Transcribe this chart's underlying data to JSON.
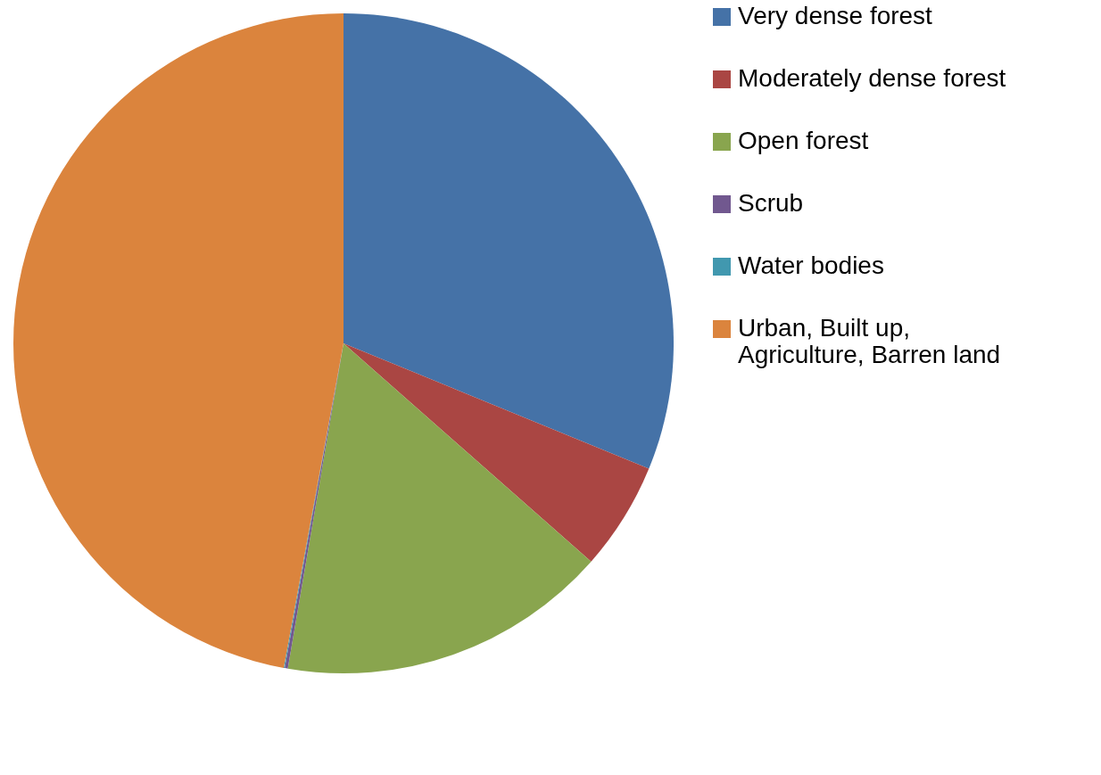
{
  "chart_data": {
    "type": "pie",
    "categories": [
      "Very dense forest",
      "Moderately dense forest",
      "Open forest",
      "Scrub",
      "Water bodies",
      "Urban, Built up, Agriculture, Barren land"
    ],
    "values": [
      31.2,
      5.3,
      16.2,
      0.15,
      0.05,
      47.1
    ],
    "colors": [
      "#4572a7",
      "#aa4643",
      "#89a54e",
      "#71588f",
      "#4198af",
      "#db843d"
    ],
    "legend": "right"
  }
}
